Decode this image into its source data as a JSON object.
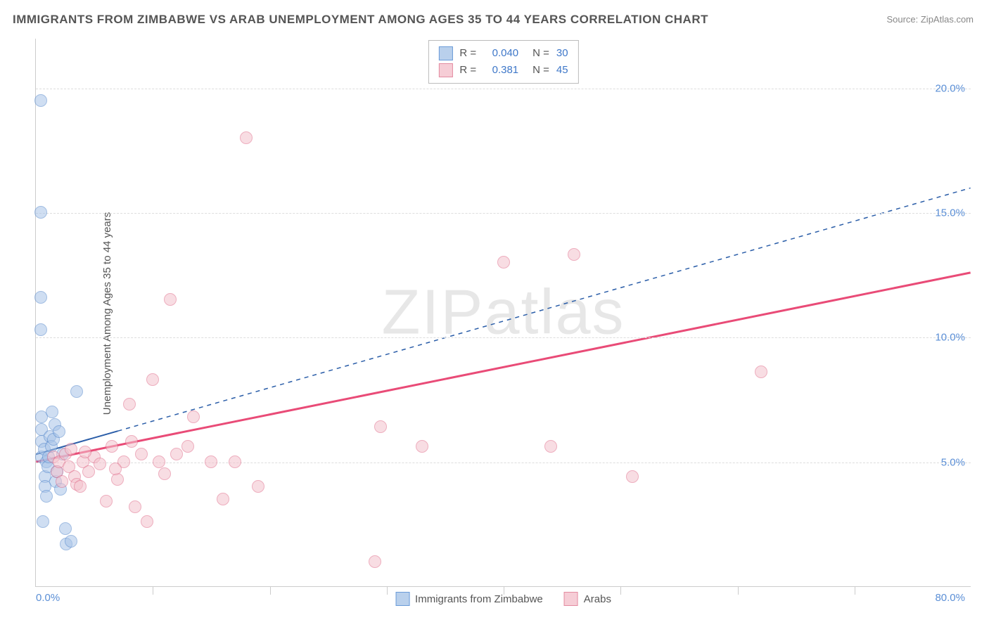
{
  "title": "IMMIGRANTS FROM ZIMBABWE VS ARAB UNEMPLOYMENT AMONG AGES 35 TO 44 YEARS CORRELATION CHART",
  "source": "Source: ZipAtlas.com",
  "y_axis_label": "Unemployment Among Ages 35 to 44 years",
  "watermark": "ZIPatlas",
  "chart": {
    "type": "scatter",
    "xlim": [
      0,
      80
    ],
    "ylim": [
      0,
      22
    ],
    "x_min_label": "0.0%",
    "x_max_label": "80.0%",
    "y_ticks": [
      5.0,
      10.0,
      15.0,
      20.0
    ],
    "y_tick_labels": [
      "5.0%",
      "10.0%",
      "15.0%",
      "20.0%"
    ],
    "x_ticks": [
      10,
      20,
      30,
      40,
      50,
      60,
      70
    ],
    "background_color": "#ffffff",
    "grid_color": "#dddddd",
    "axis_color": "#cccccc",
    "tick_label_color": "#5b8fd6",
    "marker_radius": 9,
    "marker_opacity": 0.55,
    "series": [
      {
        "name": "Immigrants from Zimbabwe",
        "color_fill": "#a8c4e8",
        "color_stroke": "#5588cc",
        "swatch_fill": "#b9d0ec",
        "swatch_border": "#6a9bd8",
        "R": "0.040",
        "N": "30",
        "trend": {
          "x1": 0,
          "y1": 5.3,
          "x2": 80,
          "y2": 16.0,
          "solid_until_x": 7,
          "color": "#2a5da8",
          "width": 2
        },
        "points": [
          [
            0.4,
            19.5
          ],
          [
            0.4,
            15.0
          ],
          [
            0.4,
            11.6
          ],
          [
            0.4,
            10.3
          ],
          [
            0.5,
            5.2
          ],
          [
            0.5,
            5.8
          ],
          [
            0.5,
            6.3
          ],
          [
            0.5,
            6.8
          ],
          [
            0.7,
            5.5
          ],
          [
            0.8,
            4.4
          ],
          [
            0.8,
            4.0
          ],
          [
            0.9,
            3.6
          ],
          [
            0.9,
            5.0
          ],
          [
            1.0,
            4.8
          ],
          [
            1.1,
            5.2
          ],
          [
            1.2,
            6.0
          ],
          [
            1.3,
            5.6
          ],
          [
            1.5,
            5.9
          ],
          [
            1.6,
            6.5
          ],
          [
            1.7,
            4.2
          ],
          [
            1.8,
            4.6
          ],
          [
            2.0,
            6.2
          ],
          [
            2.1,
            3.9
          ],
          [
            2.3,
            5.3
          ],
          [
            2.5,
            2.3
          ],
          [
            2.6,
            1.7
          ],
          [
            3.0,
            1.8
          ],
          [
            3.5,
            7.8
          ],
          [
            0.6,
            2.6
          ],
          [
            1.4,
            7.0
          ]
        ]
      },
      {
        "name": "Arabs",
        "color_fill": "#f4c2cd",
        "color_stroke": "#e06c8a",
        "swatch_fill": "#f6cdd6",
        "swatch_border": "#e38ba1",
        "R": "0.381",
        "N": "45",
        "trend": {
          "x1": 0,
          "y1": 5.0,
          "x2": 80,
          "y2": 12.6,
          "solid_until_x": 80,
          "color": "#e94b77",
          "width": 3
        },
        "points": [
          [
            1.5,
            5.2
          ],
          [
            1.8,
            4.6
          ],
          [
            2.0,
            5.0
          ],
          [
            2.2,
            4.2
          ],
          [
            2.5,
            5.3
          ],
          [
            2.8,
            4.8
          ],
          [
            3.0,
            5.5
          ],
          [
            3.3,
            4.4
          ],
          [
            3.5,
            4.1
          ],
          [
            4.0,
            5.0
          ],
          [
            4.5,
            4.6
          ],
          [
            5.0,
            5.2
          ],
          [
            5.5,
            4.9
          ],
          [
            6.0,
            3.4
          ],
          [
            6.5,
            5.6
          ],
          [
            7.0,
            4.3
          ],
          [
            7.5,
            5.0
          ],
          [
            8.0,
            7.3
          ],
          [
            8.5,
            3.2
          ],
          [
            9.0,
            5.3
          ],
          [
            9.5,
            2.6
          ],
          [
            10.0,
            8.3
          ],
          [
            10.5,
            5.0
          ],
          [
            11.0,
            4.5
          ],
          [
            11.5,
            11.5
          ],
          [
            12.0,
            5.3
          ],
          [
            13.0,
            5.6
          ],
          [
            13.5,
            6.8
          ],
          [
            15.0,
            5.0
          ],
          [
            16.0,
            3.5
          ],
          [
            17.0,
            5.0
          ],
          [
            18.0,
            18.0
          ],
          [
            19.0,
            4.0
          ],
          [
            29.0,
            1.0
          ],
          [
            29.5,
            6.4
          ],
          [
            33.0,
            5.6
          ],
          [
            44.0,
            5.6
          ],
          [
            40.0,
            13.0
          ],
          [
            46.0,
            13.3
          ],
          [
            51.0,
            4.4
          ],
          [
            62.0,
            8.6
          ],
          [
            8.2,
            5.8
          ],
          [
            3.8,
            4.0
          ],
          [
            6.8,
            4.7
          ],
          [
            4.2,
            5.4
          ]
        ]
      }
    ]
  },
  "legend_bottom": [
    {
      "label": "Immigrants from Zimbabwe"
    },
    {
      "label": "Arabs"
    }
  ]
}
